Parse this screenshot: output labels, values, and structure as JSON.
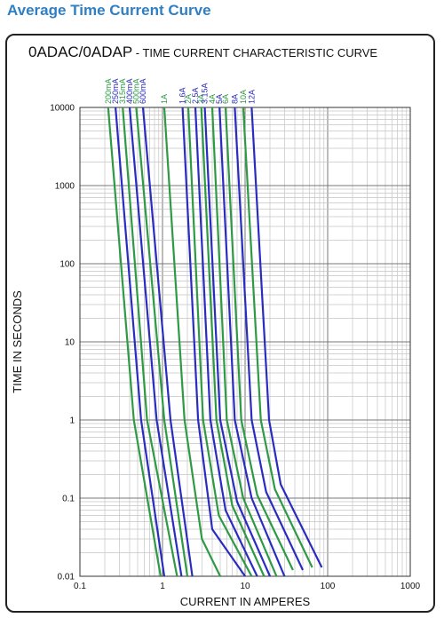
{
  "header": {
    "title": "Average Time Current Curve"
  },
  "chart_data": {
    "type": "line",
    "title_part1": "0ADAC/0ADAP",
    "title_part2": " - TIME CURRENT CHARACTERISTIC CURVE",
    "xlabel": "CURRENT IN AMPERES",
    "ylabel": "TIME IN SECONDS",
    "xscale": "log",
    "yscale": "log",
    "xlim": [
      0.1,
      1000
    ],
    "ylim": [
      0.01,
      10000
    ],
    "x_ticks": [
      "0.1",
      "1",
      "10",
      "100",
      "1000"
    ],
    "y_ticks": [
      "0.01",
      "0.1",
      "1",
      "10",
      "100",
      "1000",
      "10000"
    ],
    "grid": true,
    "colors": {
      "green": "#2e9a44",
      "blue": "#2a2cc0"
    },
    "series": [
      {
        "name": "200mA",
        "color": "green",
        "points": [
          [
            0.22,
            10000
          ],
          [
            0.45,
            1
          ],
          [
            0.95,
            0.01
          ]
        ]
      },
      {
        "name": "250mA",
        "color": "blue",
        "points": [
          [
            0.27,
            10000
          ],
          [
            0.55,
            1
          ],
          [
            1.05,
            0.01
          ]
        ]
      },
      {
        "name": "315mA",
        "color": "green",
        "points": [
          [
            0.33,
            10000
          ],
          [
            0.65,
            1
          ],
          [
            1.5,
            0.01
          ]
        ]
      },
      {
        "name": "400mA",
        "color": "blue",
        "points": [
          [
            0.4,
            10000
          ],
          [
            0.85,
            1
          ],
          [
            1.7,
            0.01
          ]
        ]
      },
      {
        "name": "500mA",
        "color": "green",
        "points": [
          [
            0.48,
            10000
          ],
          [
            1.05,
            1
          ],
          [
            2.0,
            0.01
          ]
        ]
      },
      {
        "name": "600mA",
        "color": "blue",
        "points": [
          [
            0.58,
            10000
          ],
          [
            1.25,
            1
          ],
          [
            2.3,
            0.01
          ]
        ]
      },
      {
        "name": "1A",
        "color": "green",
        "points": [
          [
            1.05,
            10000
          ],
          [
            1.85,
            1
          ],
          [
            3.0,
            0.03
          ],
          [
            5.0,
            0.01
          ]
        ]
      },
      {
        "name": "1.6A",
        "color": "blue",
        "points": [
          [
            1.75,
            10000
          ],
          [
            2.7,
            1
          ],
          [
            4.0,
            0.04
          ],
          [
            10,
            0.01
          ]
        ]
      },
      {
        "name": "2A",
        "color": "green",
        "points": [
          [
            2.05,
            10000
          ],
          [
            3.1,
            1
          ],
          [
            4.8,
            0.06
          ],
          [
            12,
            0.01
          ]
        ]
      },
      {
        "name": "2.5A",
        "color": "blue",
        "points": [
          [
            2.5,
            10000
          ],
          [
            3.8,
            1
          ],
          [
            5.8,
            0.07
          ],
          [
            14,
            0.01
          ]
        ]
      },
      {
        "name": "3A",
        "color": "green",
        "points": [
          [
            2.95,
            10000
          ],
          [
            4.5,
            1
          ],
          [
            7.0,
            0.08
          ],
          [
            17,
            0.01
          ]
        ]
      },
      {
        "name": "3.15A",
        "color": "blue",
        "points": [
          [
            3.25,
            10000
          ],
          [
            5.0,
            1
          ],
          [
            8.0,
            0.09
          ],
          [
            20,
            0.01
          ]
        ]
      },
      {
        "name": "4A",
        "color": "green",
        "points": [
          [
            4.0,
            10000
          ],
          [
            6.0,
            1
          ],
          [
            9.5,
            0.1
          ],
          [
            24,
            0.01
          ]
        ]
      },
      {
        "name": "5A",
        "color": "blue",
        "points": [
          [
            4.9,
            10000
          ],
          [
            7.5,
            1
          ],
          [
            12,
            0.1
          ],
          [
            30,
            0.01
          ]
        ]
      },
      {
        "name": "6A",
        "color": "green",
        "points": [
          [
            5.8,
            10000
          ],
          [
            9.0,
            1
          ],
          [
            14,
            0.11
          ],
          [
            38,
            0.012
          ]
        ]
      },
      {
        "name": "8A",
        "color": "blue",
        "points": [
          [
            7.5,
            10000
          ],
          [
            12,
            1
          ],
          [
            18,
            0.12
          ],
          [
            50,
            0.012
          ]
        ]
      },
      {
        "name": "10A",
        "color": "green",
        "points": [
          [
            9.5,
            10000
          ],
          [
            15.5,
            1
          ],
          [
            23,
            0.13
          ],
          [
            65,
            0.013
          ]
        ]
      },
      {
        "name": "12A",
        "color": "blue",
        "points": [
          [
            12,
            10000
          ],
          [
            19.5,
            1
          ],
          [
            27,
            0.15
          ],
          [
            85,
            0.013
          ]
        ]
      }
    ]
  }
}
